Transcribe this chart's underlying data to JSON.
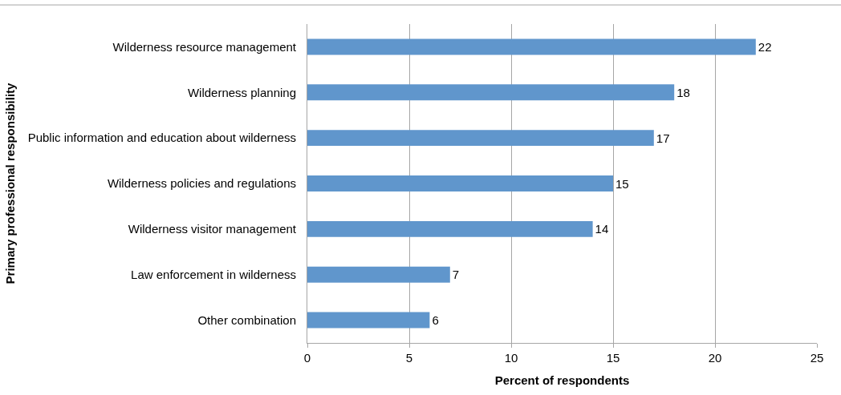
{
  "chart_data": {
    "type": "bar",
    "orientation": "horizontal",
    "ylabel": "Primary professional responsibility",
    "xlabel": "Percent of respondents",
    "categories": [
      "Wilderness resource management",
      "Wilderness planning",
      "Public information and education about wilderness",
      "Wilderness policies and regulations",
      "Wilderness visitor management",
      "Law enforcement in wilderness",
      "Other combination"
    ],
    "values": [
      22,
      18,
      17,
      15,
      14,
      7,
      6
    ],
    "color": "#6096cc",
    "xlim": [
      0,
      25
    ],
    "xticks": [
      0,
      5,
      10,
      15,
      20,
      25
    ],
    "grid": "x",
    "data_labels": true
  }
}
